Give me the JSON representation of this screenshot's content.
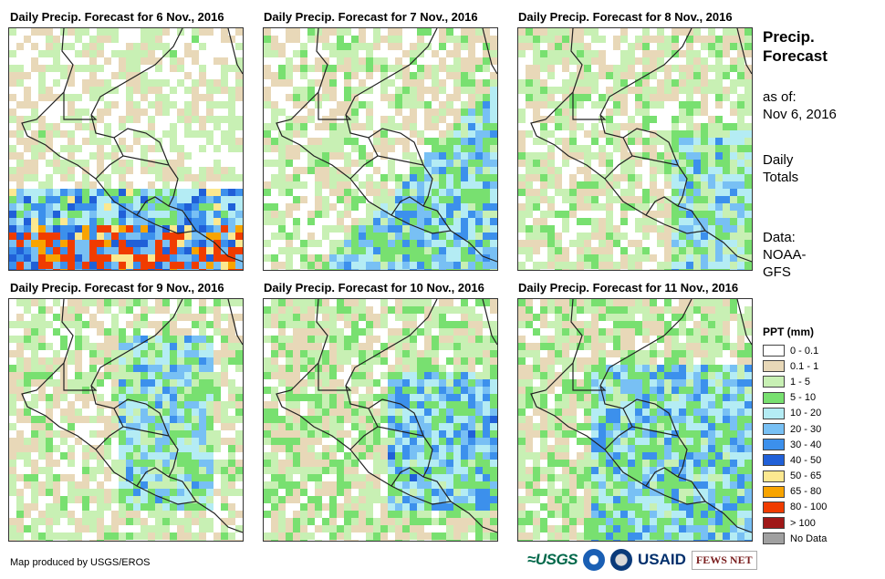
{
  "panels": [
    {
      "title": "Daily Precip. Forecast for 6 Nov., 2016",
      "seed": 6,
      "wet_pattern": "south"
    },
    {
      "title": "Daily Precip. Forecast for 7 Nov., 2016",
      "seed": 7,
      "wet_pattern": "southeast"
    },
    {
      "title": "Daily Precip. Forecast for 8 Nov., 2016",
      "seed": 8,
      "wet_pattern": "east"
    },
    {
      "title": "Daily Precip. Forecast for 9 Nov., 2016",
      "seed": 9,
      "wet_pattern": "center"
    },
    {
      "title": "Daily Precip. Forecast for 10 Nov., 2016",
      "seed": 10,
      "wet_pattern": "east-band"
    },
    {
      "title": "Daily Precip. Forecast for 11 Nov., 2016",
      "seed": 11,
      "wet_pattern": "east-heavy"
    }
  ],
  "sidebar": {
    "title_line1": "Precip.",
    "title_line2": "Forecast",
    "asof_label": "as of:",
    "asof_date": "Nov 6, 2016",
    "totals_line1": "Daily",
    "totals_line2": "Totals",
    "data_line1": "Data:",
    "data_line2": "NOAA-",
    "data_line3": "GFS"
  },
  "legend": {
    "title": "PPT (mm)",
    "items": [
      {
        "label": "0 - 0.1",
        "color": "#ffffff"
      },
      {
        "label": "0.1 - 1",
        "color": "#e8d8b8"
      },
      {
        "label": "1 - 5",
        "color": "#c8f0b4"
      },
      {
        "label": "5 - 10",
        "color": "#78e070"
      },
      {
        "label": "10 - 20",
        "color": "#b4ecf4"
      },
      {
        "label": "20 - 30",
        "color": "#78c0f4"
      },
      {
        "label": "30 - 40",
        "color": "#3c90ec"
      },
      {
        "label": "40 - 50",
        "color": "#2060d8"
      },
      {
        "label": "50 - 65",
        "color": "#fce890"
      },
      {
        "label": "65 - 80",
        "color": "#f8a400"
      },
      {
        "label": "80 - 100",
        "color": "#f03c00"
      },
      {
        "label": "> 100",
        "color": "#a01818"
      },
      {
        "label": "No Data",
        "color": "#a0a0a0"
      }
    ]
  },
  "credit": "Map produced by USGS/EROS",
  "logos": {
    "usgs": "≈USGS",
    "usaid": "USAID",
    "fews": "FEWS NET"
  }
}
